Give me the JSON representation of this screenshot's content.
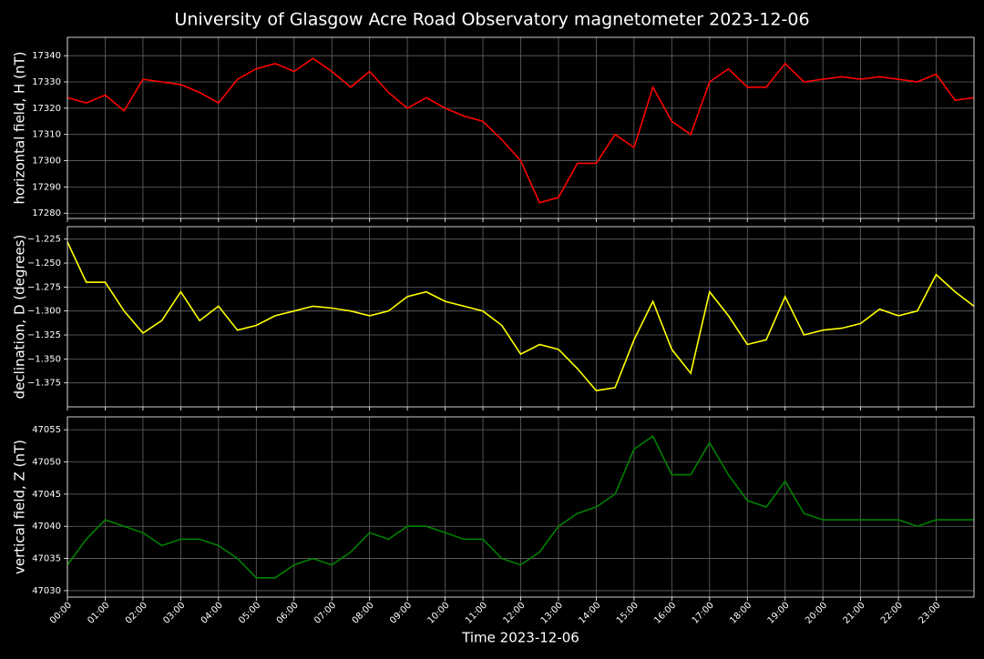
{
  "title": "University of Glasgow Acre Road Observatory magnetometer 2023-12-06",
  "chart_data": [
    {
      "type": "line",
      "ylabel": "horizontal field, H (nT)",
      "color": "#ff0000",
      "x": [
        0,
        0.5,
        1,
        1.5,
        2,
        2.5,
        3,
        3.5,
        4,
        4.5,
        5,
        5.5,
        6,
        6.5,
        7,
        7.5,
        8,
        8.5,
        9,
        9.5,
        10,
        10.5,
        11,
        11.5,
        12,
        12.5,
        13,
        13.5,
        14,
        14.5,
        15,
        15.5,
        16,
        16.5,
        17,
        17.5,
        18,
        18.5,
        19,
        19.5,
        20,
        20.5,
        21,
        21.5,
        22,
        22.5,
        23,
        23.5,
        24
      ],
      "values": [
        17324,
        17322,
        17325,
        17319,
        17331,
        17330,
        17329,
        17326,
        17322,
        17331,
        17335,
        17337,
        17334,
        17339,
        17334,
        17328,
        17334,
        17326,
        17320,
        17324,
        17320,
        17317,
        17315,
        17308,
        17300,
        17284,
        17286,
        17299,
        17299,
        17310,
        17305,
        17328,
        17315,
        17310,
        17330,
        17335,
        17328,
        17328,
        17337,
        17330,
        17331,
        17332,
        17331,
        17332,
        17331,
        17330,
        17333,
        17323,
        17324
      ],
      "xlim": [
        0,
        24
      ],
      "ylim": [
        17278,
        17347
      ],
      "yticks": [
        17280,
        17290,
        17300,
        17310,
        17320,
        17330,
        17340
      ],
      "grid": true
    },
    {
      "type": "line",
      "ylabel": "declination, D (degrees)",
      "color": "#ffff00",
      "x": [
        0,
        0.5,
        1,
        1.5,
        2,
        2.5,
        3,
        3.5,
        4,
        4.5,
        5,
        5.5,
        6,
        6.5,
        7,
        7.5,
        8,
        8.5,
        9,
        9.5,
        10,
        10.5,
        11,
        11.5,
        12,
        12.5,
        13,
        13.5,
        14,
        14.5,
        15,
        15.5,
        16,
        16.5,
        17,
        17.5,
        18,
        18.5,
        19,
        19.5,
        20,
        20.5,
        21,
        21.5,
        22,
        22.5,
        23,
        23.5,
        24
      ],
      "values": [
        -1.228,
        -1.27,
        -1.27,
        -1.3,
        -1.323,
        -1.31,
        -1.28,
        -1.31,
        -1.295,
        -1.32,
        -1.315,
        -1.305,
        -1.3,
        -1.295,
        -1.297,
        -1.3,
        -1.305,
        -1.3,
        -1.285,
        -1.28,
        -1.29,
        -1.295,
        -1.3,
        -1.315,
        -1.345,
        -1.335,
        -1.34,
        -1.36,
        -1.383,
        -1.38,
        -1.33,
        -1.29,
        -1.34,
        -1.365,
        -1.28,
        -1.305,
        -1.335,
        -1.33,
        -1.285,
        -1.325,
        -1.32,
        -1.318,
        -1.313,
        -1.298,
        -1.305,
        -1.3,
        -1.262,
        -1.28,
        -1.295
      ],
      "xlim": [
        0,
        24
      ],
      "ylim": [
        -1.4,
        -1.212
      ],
      "yticks": [
        {
          "value": -1.375,
          "label": "−1.375"
        },
        {
          "value": -1.35,
          "label": "−1.350"
        },
        {
          "value": -1.325,
          "label": "−1.325"
        },
        {
          "value": -1.3,
          "label": "−1.300"
        },
        {
          "value": -1.275,
          "label": "−1.275"
        },
        {
          "value": -1.25,
          "label": "−1.250"
        },
        {
          "value": -1.225,
          "label": "−1.225"
        }
      ],
      "grid": true
    },
    {
      "type": "line",
      "ylabel": "vertical field, Z (nT)",
      "xlabel": "Time 2023-12-06",
      "color": "#008000",
      "x": [
        0,
        0.5,
        1,
        1.5,
        2,
        2.5,
        3,
        3.5,
        4,
        4.5,
        5,
        5.5,
        6,
        6.5,
        7,
        7.5,
        8,
        8.5,
        9,
        9.5,
        10,
        10.5,
        11,
        11.5,
        12,
        12.5,
        13,
        13.5,
        14,
        14.5,
        15,
        15.5,
        16,
        16.5,
        17,
        17.5,
        18,
        18.5,
        19,
        19.5,
        20,
        20.5,
        21,
        21.5,
        22,
        22.5,
        23,
        23.5,
        24
      ],
      "values": [
        47034,
        47038,
        47041,
        47040,
        47039,
        47037,
        47038,
        47038,
        47037,
        47035,
        47032,
        47032,
        47034,
        47035,
        47034,
        47036,
        47039,
        47038,
        47040,
        47040,
        47039,
        47038,
        47038,
        47035,
        47034,
        47036,
        47040,
        47042,
        47043,
        47045,
        47052,
        47054,
        47048,
        47048,
        47053,
        47048,
        47044,
        47043,
        47047,
        47042,
        47041,
        47041,
        47041,
        47041,
        47041,
        47040,
        47041,
        47041,
        47041
      ],
      "xlim": [
        0,
        24
      ],
      "ylim": [
        47029,
        47057
      ],
      "yticks": [
        47030,
        47035,
        47040,
        47045,
        47050,
        47055
      ],
      "xticks": [
        {
          "value": 0,
          "label": "00:00"
        },
        {
          "value": 1,
          "label": "01:00"
        },
        {
          "value": 2,
          "label": "02:00"
        },
        {
          "value": 3,
          "label": "03:00"
        },
        {
          "value": 4,
          "label": "04:00"
        },
        {
          "value": 5,
          "label": "05:00"
        },
        {
          "value": 6,
          "label": "06:00"
        },
        {
          "value": 7,
          "label": "07:00"
        },
        {
          "value": 8,
          "label": "08:00"
        },
        {
          "value": 9,
          "label": "09:00"
        },
        {
          "value": 10,
          "label": "10:00"
        },
        {
          "value": 11,
          "label": "11:00"
        },
        {
          "value": 12,
          "label": "12:00"
        },
        {
          "value": 13,
          "label": "13:00"
        },
        {
          "value": 14,
          "label": "14:00"
        },
        {
          "value": 15,
          "label": "15:00"
        },
        {
          "value": 16,
          "label": "16:00"
        },
        {
          "value": 17,
          "label": "17:00"
        },
        {
          "value": 18,
          "label": "18:00"
        },
        {
          "value": 19,
          "label": "19:00"
        },
        {
          "value": 20,
          "label": "20:00"
        },
        {
          "value": 21,
          "label": "21:00"
        },
        {
          "value": 22,
          "label": "22:00"
        },
        {
          "value": 23,
          "label": "23:00"
        }
      ],
      "grid": true
    }
  ]
}
